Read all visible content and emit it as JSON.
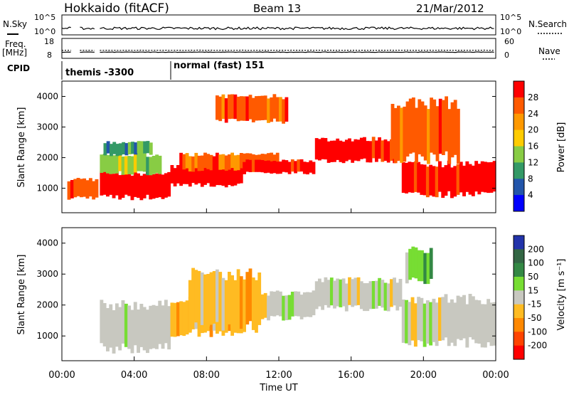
{
  "header": {
    "station": "Hokkaido (fitACF)",
    "beam": "Beam 13",
    "date": "21/Mar/2012"
  },
  "top_panels": {
    "nsky_label": "N.Sky",
    "nsearch_label": "N.Search",
    "nsky_ticks": [
      "10^5",
      "10^0"
    ],
    "nsky_right_ticks": [
      "10^5",
      "10^0"
    ],
    "freq_label": "Freq.",
    "freq_unit": "[MHz]",
    "freq_ticks": [
      "18",
      "8"
    ],
    "nave_label": "Nave",
    "nave_ticks": [
      "60",
      "0"
    ],
    "cpid_label": "CPID",
    "cpid_segments": [
      {
        "label": "themis -3300",
        "start_hour": 0
      },
      {
        "label": "normal (fast) 151",
        "start_hour": 6
      }
    ]
  },
  "chart_data": [
    {
      "type": "heatmap",
      "name": "power",
      "ylabel": "Slant Range [km]",
      "ylim": [
        200,
        4500
      ],
      "yticks": [
        1000,
        2000,
        3000,
        4000
      ],
      "xlim": [
        0,
        24
      ],
      "colorbar": {
        "label": "Power [dB]",
        "ticks": [
          "28",
          "24",
          "20",
          "16",
          "12",
          "8",
          "4"
        ],
        "colors": [
          "#ff0000",
          "#ff5a00",
          "#ff9900",
          "#ffcc00",
          "#88cc44",
          "#339966",
          "#2255aa",
          "#0000ff"
        ]
      },
      "bands": [
        {
          "t0": 0.3,
          "t1": 2.0,
          "r0": 700,
          "r1": 1300,
          "level": 6
        },
        {
          "t0": 2.1,
          "t1": 6.0,
          "r0": 700,
          "r1": 1500,
          "level": 7
        },
        {
          "t0": 2.1,
          "t1": 5.5,
          "r0": 1500,
          "r1": 2100,
          "level": 3
        },
        {
          "t0": 2.3,
          "t1": 5.0,
          "r0": 2100,
          "r1": 2500,
          "level": 2
        },
        {
          "t0": 6.0,
          "t1": 10.0,
          "r0": 1100,
          "r1": 1700,
          "level": 7
        },
        {
          "t0": 6.5,
          "t1": 12.0,
          "r0": 1600,
          "r1": 2100,
          "level": 6
        },
        {
          "t0": 10.0,
          "t1": 14.0,
          "r0": 1500,
          "r1": 1900,
          "level": 7
        },
        {
          "t0": 14.0,
          "t1": 18.8,
          "r0": 1900,
          "r1": 2600,
          "level": 7
        },
        {
          "t0": 18.8,
          "t1": 24.0,
          "r0": 800,
          "r1": 1800,
          "level": 7
        },
        {
          "t0": 8.5,
          "t1": 12.5,
          "r0": 3200,
          "r1": 4000,
          "level": 6
        },
        {
          "t0": 18.2,
          "t1": 22.0,
          "r0": 2000,
          "r1": 3800,
          "level": 6
        }
      ]
    },
    {
      "type": "heatmap",
      "name": "velocity",
      "ylabel": "Slant Range [km]",
      "xlabel": "Time UT",
      "ylim": [
        200,
        4500
      ],
      "yticks": [
        1000,
        2000,
        3000,
        4000
      ],
      "xlim": [
        0,
        24
      ],
      "xticks": [
        "00:00",
        "04:00",
        "08:00",
        "12:00",
        "16:00",
        "20:00",
        "00:00"
      ],
      "colorbar": {
        "label": "Velocity [m s⁻¹]",
        "ticks": [
          "200",
          "100",
          "50",
          "15",
          "-15",
          "-50",
          "-100",
          "-200"
        ],
        "colors": [
          "#2233aa",
          "#336644",
          "#338844",
          "#77dd33",
          "#c8c8c0",
          "#ffbb22",
          "#ff8800",
          "#ff4400",
          "#ff0000"
        ]
      },
      "bands": [
        {
          "t0": 2.1,
          "t1": 6.0,
          "r0": 600,
          "r1": 2000,
          "level": 4
        },
        {
          "t0": 6.0,
          "t1": 10.0,
          "r0": 1100,
          "r1": 2200,
          "level": 5
        },
        {
          "t0": 10.0,
          "t1": 14.0,
          "r0": 1600,
          "r1": 2400,
          "level": 4
        },
        {
          "t0": 14.0,
          "t1": 18.8,
          "r0": 1900,
          "r1": 2800,
          "level": 4
        },
        {
          "t0": 18.8,
          "t1": 24.0,
          "r0": 800,
          "r1": 2200,
          "level": 4
        },
        {
          "t0": 19.0,
          "t1": 20.5,
          "r0": 2800,
          "r1": 3800,
          "level": 3
        },
        {
          "t0": 7.0,
          "t1": 11.0,
          "r0": 1300,
          "r1": 3000,
          "level": 5
        }
      ]
    }
  ]
}
